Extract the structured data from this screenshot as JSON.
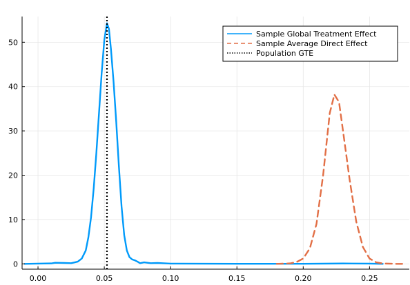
{
  "chart_data": {
    "type": "line",
    "title": "",
    "xlabel": "",
    "ylabel": "",
    "xlim": [
      -0.012,
      0.28
    ],
    "ylim": [
      -1.2,
      55.8
    ],
    "xticks": [
      0.0,
      0.05,
      0.1,
      0.15,
      0.2,
      0.25
    ],
    "xtick_labels": [
      "0.00",
      "0.05",
      "0.10",
      "0.15",
      "0.20",
      "0.25"
    ],
    "yticks": [
      0,
      10,
      20,
      30,
      40,
      50
    ],
    "ytick_labels": [
      "0",
      "10",
      "20",
      "30",
      "40",
      "50"
    ],
    "grid": true,
    "legend_position": "top-right",
    "series": [
      {
        "name": "Sample Global Treatment Effect",
        "style": "solid",
        "color": "#009AFA",
        "points": [
          [
            -0.01,
            0.0
          ],
          [
            0.0,
            0.05
          ],
          [
            0.01,
            0.1
          ],
          [
            0.013,
            0.25
          ],
          [
            0.02,
            0.2
          ],
          [
            0.025,
            0.15
          ],
          [
            0.03,
            0.5
          ],
          [
            0.033,
            1.2
          ],
          [
            0.036,
            3.0
          ],
          [
            0.038,
            6.0
          ],
          [
            0.04,
            10.5
          ],
          [
            0.042,
            17.0
          ],
          [
            0.044,
            25.0
          ],
          [
            0.046,
            34.0
          ],
          [
            0.048,
            43.0
          ],
          [
            0.05,
            50.5
          ],
          [
            0.052,
            54.3
          ],
          [
            0.0535,
            53.0
          ],
          [
            0.055,
            48.5
          ],
          [
            0.057,
            41.0
          ],
          [
            0.059,
            32.0
          ],
          [
            0.061,
            22.0
          ],
          [
            0.063,
            13.0
          ],
          [
            0.065,
            6.5
          ],
          [
            0.067,
            3.0
          ],
          [
            0.069,
            1.5
          ],
          [
            0.071,
            1.0
          ],
          [
            0.073,
            0.8
          ],
          [
            0.075,
            0.5
          ],
          [
            0.077,
            0.15
          ],
          [
            0.08,
            0.35
          ],
          [
            0.085,
            0.15
          ],
          [
            0.09,
            0.2
          ],
          [
            0.1,
            0.05
          ],
          [
            0.15,
            0.02
          ],
          [
            0.2,
            0.02
          ],
          [
            0.23,
            0.08
          ],
          [
            0.25,
            0.05
          ],
          [
            0.26,
            0.0
          ]
        ]
      },
      {
        "name": "Sample Average Direct Effect",
        "style": "dashed",
        "color": "#E26F46",
        "points": [
          [
            0.18,
            0.0
          ],
          [
            0.19,
            0.1
          ],
          [
            0.195,
            0.4
          ],
          [
            0.2,
            1.2
          ],
          [
            0.205,
            3.5
          ],
          [
            0.21,
            9.0
          ],
          [
            0.215,
            20.0
          ],
          [
            0.22,
            34.0
          ],
          [
            0.2235,
            38.2
          ],
          [
            0.227,
            36.5
          ],
          [
            0.23,
            30.0
          ],
          [
            0.235,
            19.0
          ],
          [
            0.24,
            9.5
          ],
          [
            0.245,
            3.8
          ],
          [
            0.25,
            1.2
          ],
          [
            0.255,
            0.35
          ],
          [
            0.26,
            0.08
          ],
          [
            0.27,
            0.0
          ],
          [
            0.275,
            0.0
          ]
        ]
      },
      {
        "name": "Population GTE",
        "style": "dotted",
        "color": "#000000",
        "vline_x": 0.052
      }
    ]
  }
}
